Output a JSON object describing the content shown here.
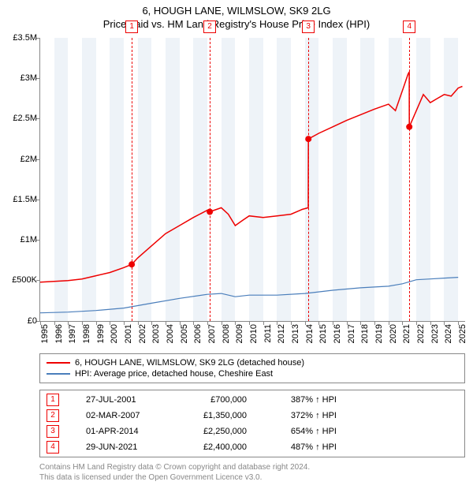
{
  "title_line1": "6, HOUGH LANE, WILMSLOW, SK9 2LG",
  "title_line2": "Price paid vs. HM Land Registry's House Price Index (HPI)",
  "chart": {
    "type": "line",
    "background_color": "#ffffff",
    "band_color": "#eef3f8",
    "axis_color": "#888888",
    "x_min": 1995,
    "x_max": 2025.5,
    "y_min": 0,
    "y_max": 3500000,
    "y_ticks": [
      0,
      500000,
      1000000,
      1500000,
      2000000,
      2500000,
      3000000,
      3500000
    ],
    "y_tick_labels": [
      "£0",
      "£500K",
      "£1M",
      "£1.5M",
      "£2M",
      "£2.5M",
      "£3M",
      "£3.5M"
    ],
    "x_ticks": [
      1995,
      1996,
      1997,
      1998,
      1999,
      2000,
      2001,
      2002,
      2003,
      2004,
      2005,
      2006,
      2007,
      2008,
      2009,
      2010,
      2011,
      2012,
      2013,
      2014,
      2015,
      2016,
      2017,
      2018,
      2019,
      2020,
      2021,
      2022,
      2023,
      2024,
      2025
    ],
    "x_tick_labels": [
      "1995",
      "1996",
      "1997",
      "1998",
      "1999",
      "2000",
      "2001",
      "2002",
      "2003",
      "2004",
      "2005",
      "2006",
      "2007",
      "2008",
      "2009",
      "2010",
      "2011",
      "2012",
      "2013",
      "2014",
      "2015",
      "2016",
      "2017",
      "2018",
      "2019",
      "2020",
      "2021",
      "2022",
      "2023",
      "2024",
      "2025"
    ],
    "band_years": [
      1996,
      1998,
      2000,
      2002,
      2004,
      2006,
      2008,
      2010,
      2012,
      2014,
      2016,
      2018,
      2020,
      2022,
      2024
    ],
    "series": [
      {
        "name": "6, HOUGH LANE, WILMSLOW, SK9 2LG (detached house)",
        "color": "#ee0000",
        "width": 1.5,
        "data": [
          [
            1995.0,
            480000
          ],
          [
            1996.0,
            490000
          ],
          [
            1997.0,
            500000
          ],
          [
            1998.0,
            520000
          ],
          [
            1999.0,
            560000
          ],
          [
            2000.0,
            600000
          ],
          [
            2001.0,
            660000
          ],
          [
            2001.57,
            700000
          ],
          [
            2002.0,
            780000
          ],
          [
            2003.0,
            930000
          ],
          [
            2004.0,
            1080000
          ],
          [
            2005.0,
            1180000
          ],
          [
            2006.0,
            1280000
          ],
          [
            2007.0,
            1370000
          ],
          [
            2007.17,
            1350000
          ],
          [
            2008.0,
            1400000
          ],
          [
            2008.5,
            1320000
          ],
          [
            2009.0,
            1180000
          ],
          [
            2009.5,
            1240000
          ],
          [
            2010.0,
            1300000
          ],
          [
            2011.0,
            1280000
          ],
          [
            2012.0,
            1300000
          ],
          [
            2013.0,
            1320000
          ],
          [
            2013.8,
            1380000
          ],
          [
            2014.24,
            1400000
          ],
          [
            2014.25,
            2250000
          ],
          [
            2015.0,
            2320000
          ],
          [
            2016.0,
            2400000
          ],
          [
            2017.0,
            2480000
          ],
          [
            2018.0,
            2550000
          ],
          [
            2019.0,
            2620000
          ],
          [
            2020.0,
            2680000
          ],
          [
            2020.5,
            2600000
          ],
          [
            2021.0,
            2850000
          ],
          [
            2021.4,
            3050000
          ],
          [
            2021.49,
            3080000
          ],
          [
            2021.495,
            2400000
          ],
          [
            2022.0,
            2600000
          ],
          [
            2022.5,
            2800000
          ],
          [
            2023.0,
            2700000
          ],
          [
            2023.5,
            2750000
          ],
          [
            2024.0,
            2800000
          ],
          [
            2024.5,
            2780000
          ],
          [
            2025.0,
            2880000
          ],
          [
            2025.3,
            2900000
          ]
        ]
      },
      {
        "name": "HPI: Average price, detached house, Cheshire East",
        "color": "#4a7ebb",
        "width": 1.2,
        "data": [
          [
            1995.0,
            100000
          ],
          [
            1997.0,
            110000
          ],
          [
            1999.0,
            130000
          ],
          [
            2001.0,
            160000
          ],
          [
            2003.0,
            220000
          ],
          [
            2005.0,
            280000
          ],
          [
            2007.0,
            330000
          ],
          [
            2008.0,
            340000
          ],
          [
            2009.0,
            300000
          ],
          [
            2010.0,
            320000
          ],
          [
            2012.0,
            320000
          ],
          [
            2014.0,
            340000
          ],
          [
            2016.0,
            380000
          ],
          [
            2018.0,
            410000
          ],
          [
            2020.0,
            430000
          ],
          [
            2021.0,
            460000
          ],
          [
            2022.0,
            510000
          ],
          [
            2023.0,
            520000
          ],
          [
            2024.0,
            530000
          ],
          [
            2025.0,
            540000
          ]
        ]
      }
    ],
    "markers": [
      {
        "label": "1",
        "x": 2001.57,
        "y": 700000,
        "date": "27-JUL-2001",
        "price": "£700,000",
        "pct": "387%"
      },
      {
        "label": "2",
        "x": 2007.17,
        "y": 1350000,
        "date": "02-MAR-2007",
        "price": "£1,350,000",
        "pct": "372%"
      },
      {
        "label": "3",
        "x": 2014.25,
        "y": 2250000,
        "date": "01-APR-2014",
        "price": "£2,250,000",
        "pct": "654%"
      },
      {
        "label": "4",
        "x": 2021.495,
        "y": 2400000,
        "date": "29-JUN-2021",
        "price": "£2,400,000",
        "pct": "487%"
      }
    ],
    "marker_point_color": "#ee0000",
    "marker_point_radius": 4,
    "flag_top_offset": -22,
    "hpi_suffix": " ↑ HPI"
  },
  "legend": {
    "border_color": "#888888"
  },
  "attribution_line1": "Contains HM Land Registry data © Crown copyright and database right 2024.",
  "attribution_line2": "This data is licensed under the Open Government Licence v3.0."
}
